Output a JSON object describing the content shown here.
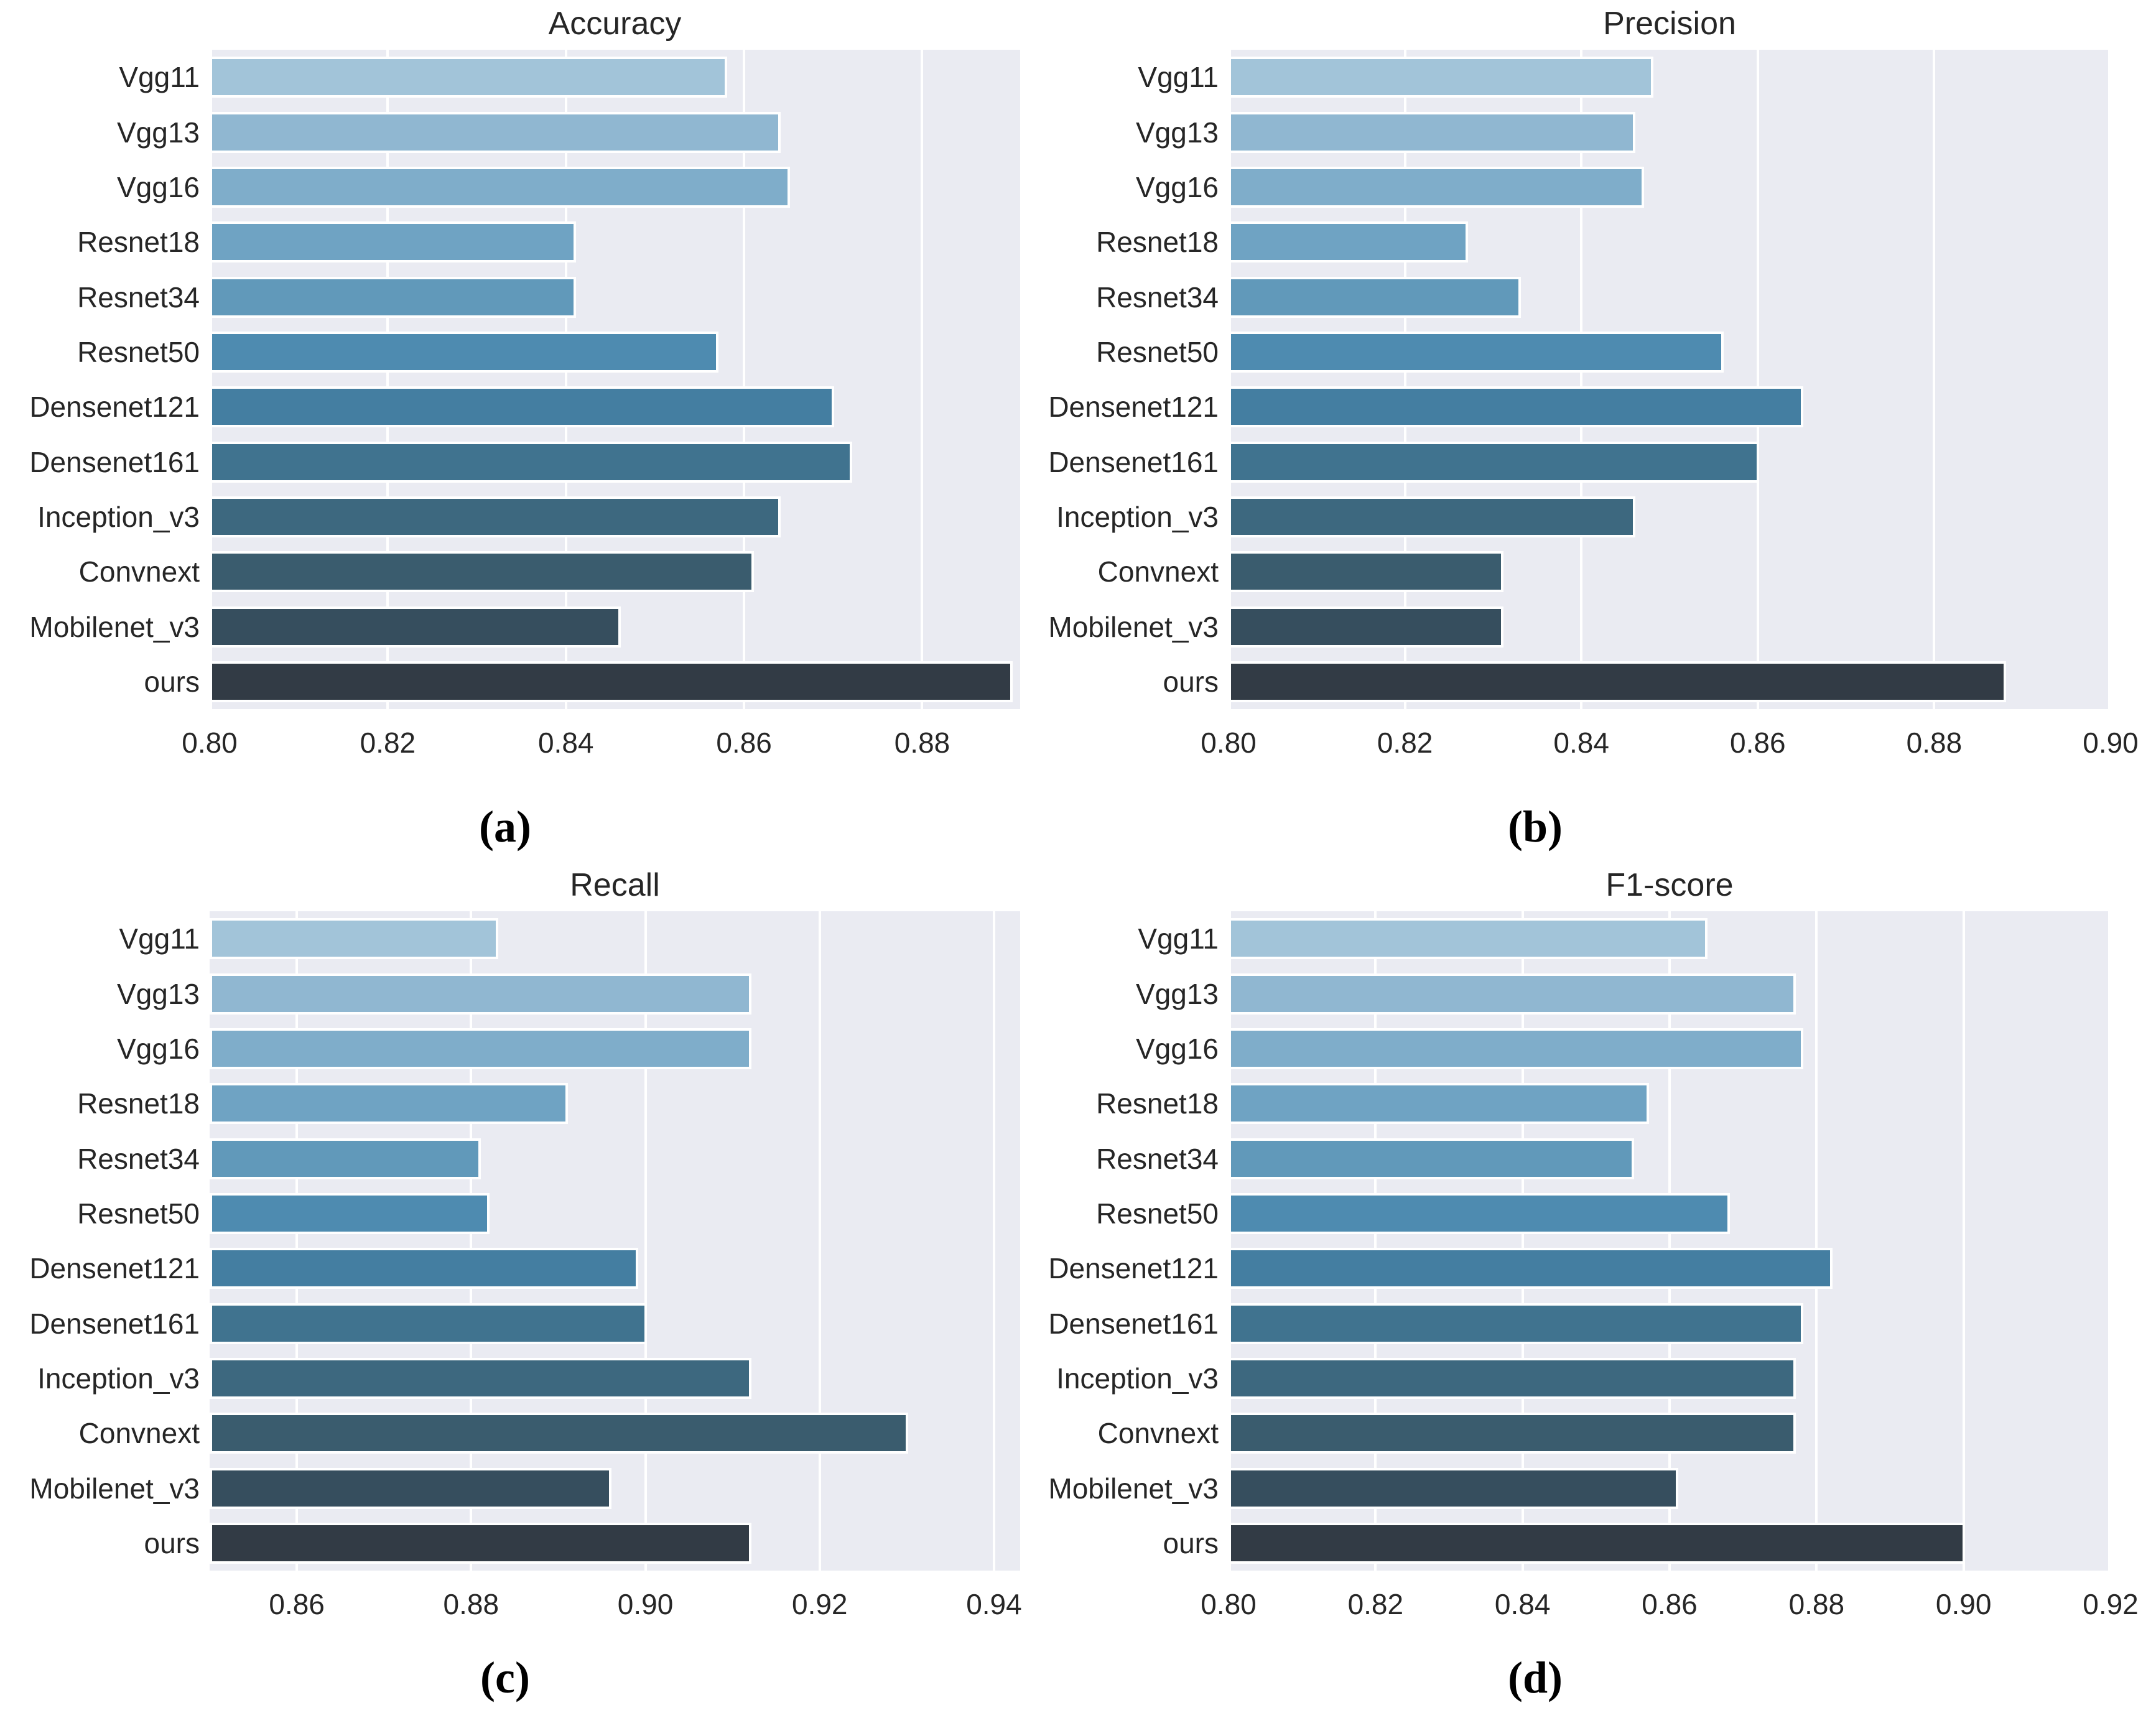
{
  "figure": {
    "background": "#ffffff",
    "captions": [
      "(a)",
      "(b)",
      "(c)",
      "(d)"
    ]
  },
  "style": {
    "plot_bg": "#eaebf2",
    "grid_color": "#ffffff",
    "bar_edge_color": "#ffffff",
    "text_color": "#262626",
    "caption_color": "#000000",
    "bar_palette": [
      "#a2c4d9",
      "#90b7d1",
      "#7fadca",
      "#6fa3c3",
      "#6199ba",
      "#4e8bb0",
      "#447ea1",
      "#40738f",
      "#3d687f",
      "#3a5c6e",
      "#364e5e",
      "#323b45"
    ]
  },
  "chart_data": [
    {
      "type": "bar",
      "orientation": "horizontal",
      "title": "Accuracy",
      "caption": "(a)",
      "categories": [
        "Vgg11",
        "Vgg13",
        "Vgg16",
        "Resnet18",
        "Resnet34",
        "Resnet50",
        "Densenet121",
        "Densenet161",
        "Inception_v3",
        "Convnext",
        "Mobilenet_v3",
        "ours"
      ],
      "values": [
        0.858,
        0.864,
        0.865,
        0.841,
        0.841,
        0.857,
        0.87,
        0.872,
        0.864,
        0.861,
        0.846,
        0.89
      ],
      "xlim": [
        0.8,
        0.891
      ],
      "xticks": [
        0.8,
        0.82,
        0.84,
        0.86,
        0.88
      ],
      "grid": true,
      "legend": null,
      "xlabel": "",
      "ylabel": ""
    },
    {
      "type": "bar",
      "orientation": "horizontal",
      "title": "Precision",
      "caption": "(b)",
      "categories": [
        "Vgg11",
        "Vgg13",
        "Vgg16",
        "Resnet18",
        "Resnet34",
        "Resnet50",
        "Densenet121",
        "Densenet161",
        "Inception_v3",
        "Convnext",
        "Mobilenet_v3",
        "ours"
      ],
      "values": [
        0.848,
        0.846,
        0.847,
        0.827,
        0.833,
        0.856,
        0.865,
        0.86,
        0.846,
        0.831,
        0.831,
        0.888
      ],
      "xlim": [
        0.8,
        0.9
      ],
      "xticks": [
        0.8,
        0.82,
        0.84,
        0.86,
        0.88,
        0.9
      ],
      "grid": true,
      "legend": null,
      "xlabel": "",
      "ylabel": ""
    },
    {
      "type": "bar",
      "orientation": "horizontal",
      "title": "Recall",
      "caption": "(c)",
      "categories": [
        "Vgg11",
        "Vgg13",
        "Vgg16",
        "Resnet18",
        "Resnet34",
        "Resnet50",
        "Densenet121",
        "Densenet161",
        "Inception_v3",
        "Convnext",
        "Mobilenet_v3",
        "ours"
      ],
      "values": [
        0.883,
        0.912,
        0.912,
        0.891,
        0.881,
        0.882,
        0.899,
        0.9,
        0.912,
        0.93,
        0.896,
        0.912
      ],
      "xlim": [
        0.85,
        0.943
      ],
      "xticks": [
        0.86,
        0.88,
        0.9,
        0.92,
        0.94
      ],
      "grid": true,
      "legend": null,
      "xlabel": "",
      "ylabel": ""
    },
    {
      "type": "bar",
      "orientation": "horizontal",
      "title": "F1-score",
      "caption": "(d)",
      "categories": [
        "Vgg11",
        "Vgg13",
        "Vgg16",
        "Resnet18",
        "Resnet34",
        "Resnet50",
        "Densenet121",
        "Densenet161",
        "Inception_v3",
        "Convnext",
        "Mobilenet_v3",
        "ours"
      ],
      "values": [
        0.865,
        0.877,
        0.878,
        0.857,
        0.855,
        0.868,
        0.882,
        0.878,
        0.877,
        0.877,
        0.861,
        0.9
      ],
      "xlim": [
        0.8,
        0.92
      ],
      "xticks": [
        0.8,
        0.82,
        0.84,
        0.86,
        0.88,
        0.9,
        0.92
      ],
      "grid": true,
      "legend": null,
      "xlabel": "",
      "ylabel": ""
    }
  ]
}
